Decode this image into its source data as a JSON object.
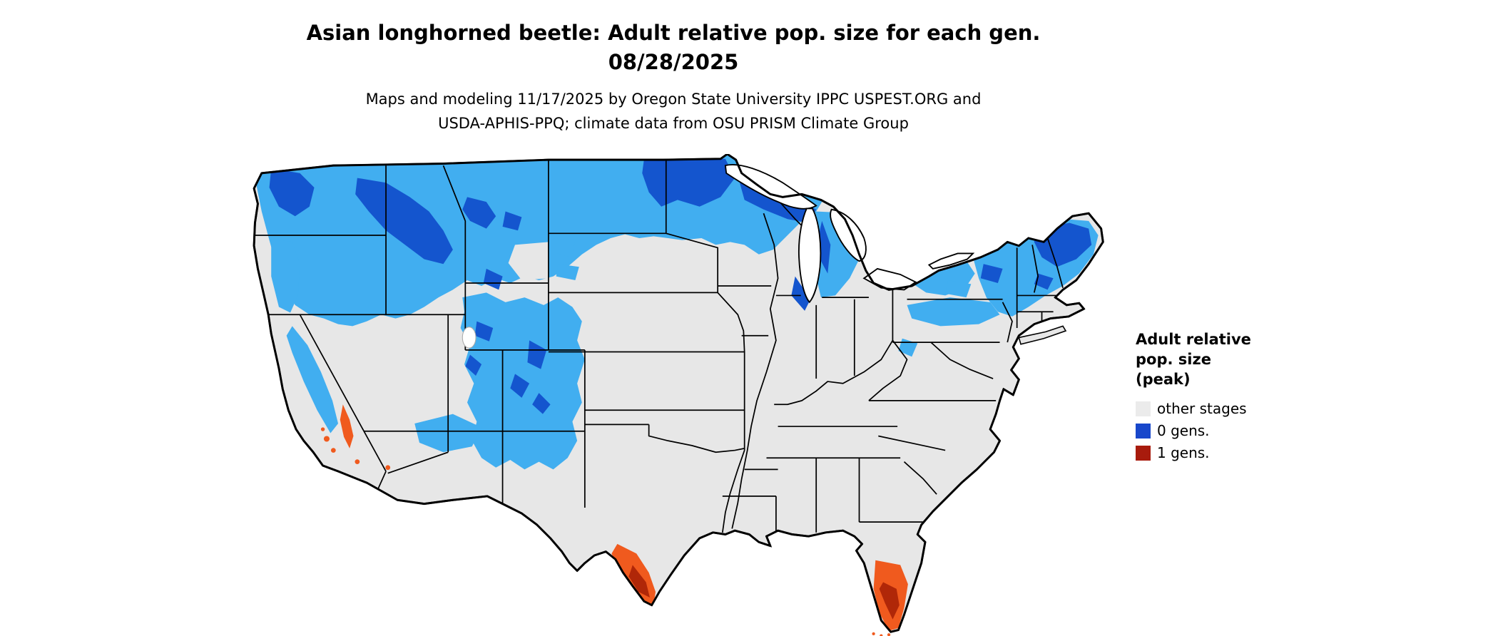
{
  "title": {
    "line1": "Asian longhorned beetle: Adult relative pop. size for each gen.",
    "line2": "08/28/2025"
  },
  "subtitle": {
    "line1": "Maps and modeling 11/17/2025 by Oregon State University IPPC USPEST.ORG and",
    "line2": "USDA-APHIS-PPQ; climate data from OSU PRISM Climate Group"
  },
  "legend": {
    "title_lines": [
      "Adult relative",
      "pop. size",
      "(peak)"
    ],
    "items": [
      {
        "label": "other stages",
        "color": "#ebebeb"
      },
      {
        "label": "0 gens.",
        "color": "#1847cb"
      },
      {
        "label": "1 gens.",
        "color": "#a81b0d"
      }
    ]
  },
  "map": {
    "region": "Continental United States",
    "colors": {
      "land": "#e7e7e7",
      "gen0_light": "#41aef0",
      "gen0_dark": "#1455ce",
      "gen1": "#f05a1e",
      "gen1_dark": "#b02708"
    }
  }
}
